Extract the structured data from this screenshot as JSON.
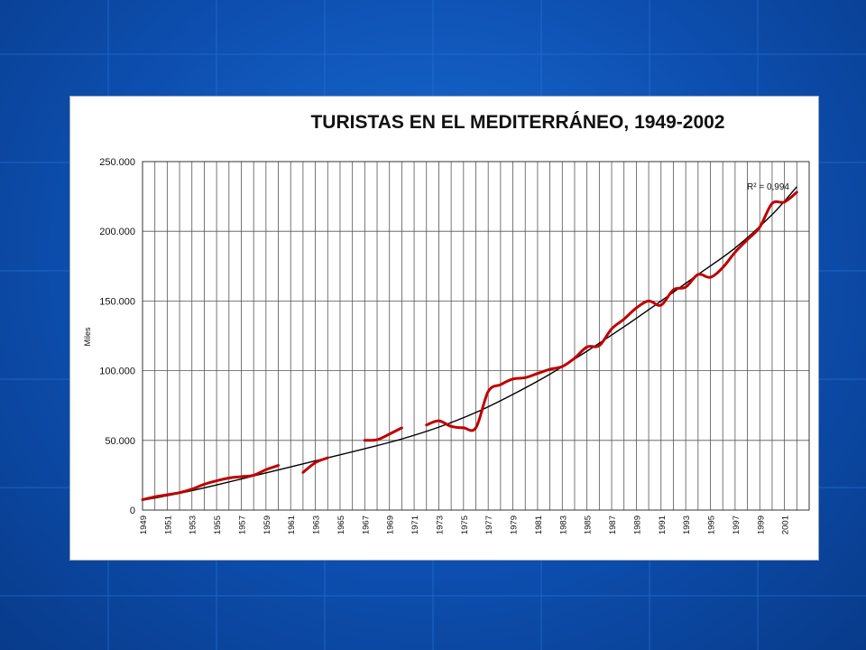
{
  "chart_data": {
    "type": "line",
    "title": "TURISTAS EN EL MEDITERRÁNEO, 1949-2002",
    "xlabel": "",
    "ylabel": "Miles",
    "ylim": [
      0,
      250000
    ],
    "yticks": [
      0,
      50000,
      100000,
      150000,
      200000,
      250000
    ],
    "ytick_labels": [
      "0",
      "50.000",
      "100.000",
      "150.000",
      "200.000",
      "250.000"
    ],
    "xticks": [
      "1949",
      "1951",
      "1953",
      "1955",
      "1957",
      "1959",
      "1961",
      "1963",
      "1965",
      "1967",
      "1969",
      "1971",
      "1973",
      "1975",
      "1977",
      "1979",
      "1981",
      "1983",
      "1985",
      "1987",
      "1989",
      "1991",
      "1993",
      "1995",
      "1997",
      "1999",
      "2001"
    ],
    "xrange": [
      1949,
      2003
    ],
    "grid": true,
    "annotation": "R² = 0,994",
    "colors": {
      "data_series": "#c00000",
      "trend": "#000000"
    },
    "series": [
      {
        "segments": [
          [
            [
              1949,
              7500
            ],
            [
              1950,
              9500
            ],
            [
              1951,
              11000
            ],
            [
              1952,
              12500
            ],
            [
              1953,
              15000
            ],
            [
              1954,
              18500
            ],
            [
              1955,
              21000
            ],
            [
              1956,
              23000
            ],
            [
              1957,
              24000
            ],
            [
              1958,
              25000
            ],
            [
              1959,
              29000
            ],
            [
              1960,
              32000
            ]
          ],
          [
            [
              1962,
              27000
            ],
            [
              1963,
              34000
            ],
            [
              1964,
              37500
            ]
          ],
          [
            [
              1967,
              50000
            ],
            [
              1968,
              50500
            ],
            [
              1969,
              54500
            ],
            [
              1970,
              59000
            ]
          ],
          [
            [
              1972,
              61000
            ],
            [
              1973,
              64000
            ],
            [
              1974,
              60000
            ],
            [
              1975,
              59000
            ],
            [
              1976,
              59000
            ],
            [
              1977,
              85000
            ],
            [
              1978,
              90000
            ],
            [
              1979,
              94000
            ],
            [
              1980,
              95000
            ],
            [
              1981,
              98000
            ],
            [
              1982,
              101000
            ],
            [
              1983,
              103000
            ],
            [
              1984,
              109000
            ],
            [
              1985,
              117000
            ],
            [
              1986,
              118000
            ],
            [
              1987,
              130000
            ],
            [
              1988,
              137000
            ],
            [
              1989,
              145000
            ],
            [
              1990,
              150000
            ],
            [
              1991,
              147000
            ],
            [
              1992,
              158000
            ],
            [
              1993,
              160000
            ],
            [
              1994,
              169000
            ],
            [
              1995,
              167000
            ],
            [
              1996,
              174000
            ],
            [
              1997,
              185000
            ],
            [
              1998,
              194000
            ],
            [
              1999,
              203000
            ],
            [
              2000,
              220000
            ],
            [
              2001,
              221000
            ],
            [
              2002,
              228000
            ]
          ]
        ]
      },
      {
        "trend": true,
        "values": [
          [
            1949,
            7000
          ],
          [
            1952,
            12000
          ],
          [
            1955,
            18000
          ],
          [
            1958,
            24500
          ],
          [
            1961,
            31000
          ],
          [
            1964,
            37500
          ],
          [
            1967,
            44000
          ],
          [
            1970,
            51000
          ],
          [
            1973,
            59500
          ],
          [
            1976,
            70000
          ],
          [
            1979,
            83000
          ],
          [
            1982,
            97500
          ],
          [
            1985,
            114000
          ],
          [
            1988,
            131500
          ],
          [
            1991,
            150000
          ],
          [
            1994,
            169000
          ],
          [
            1997,
            188000
          ],
          [
            2000,
            212000
          ],
          [
            2002,
            232000
          ]
        ]
      }
    ]
  }
}
